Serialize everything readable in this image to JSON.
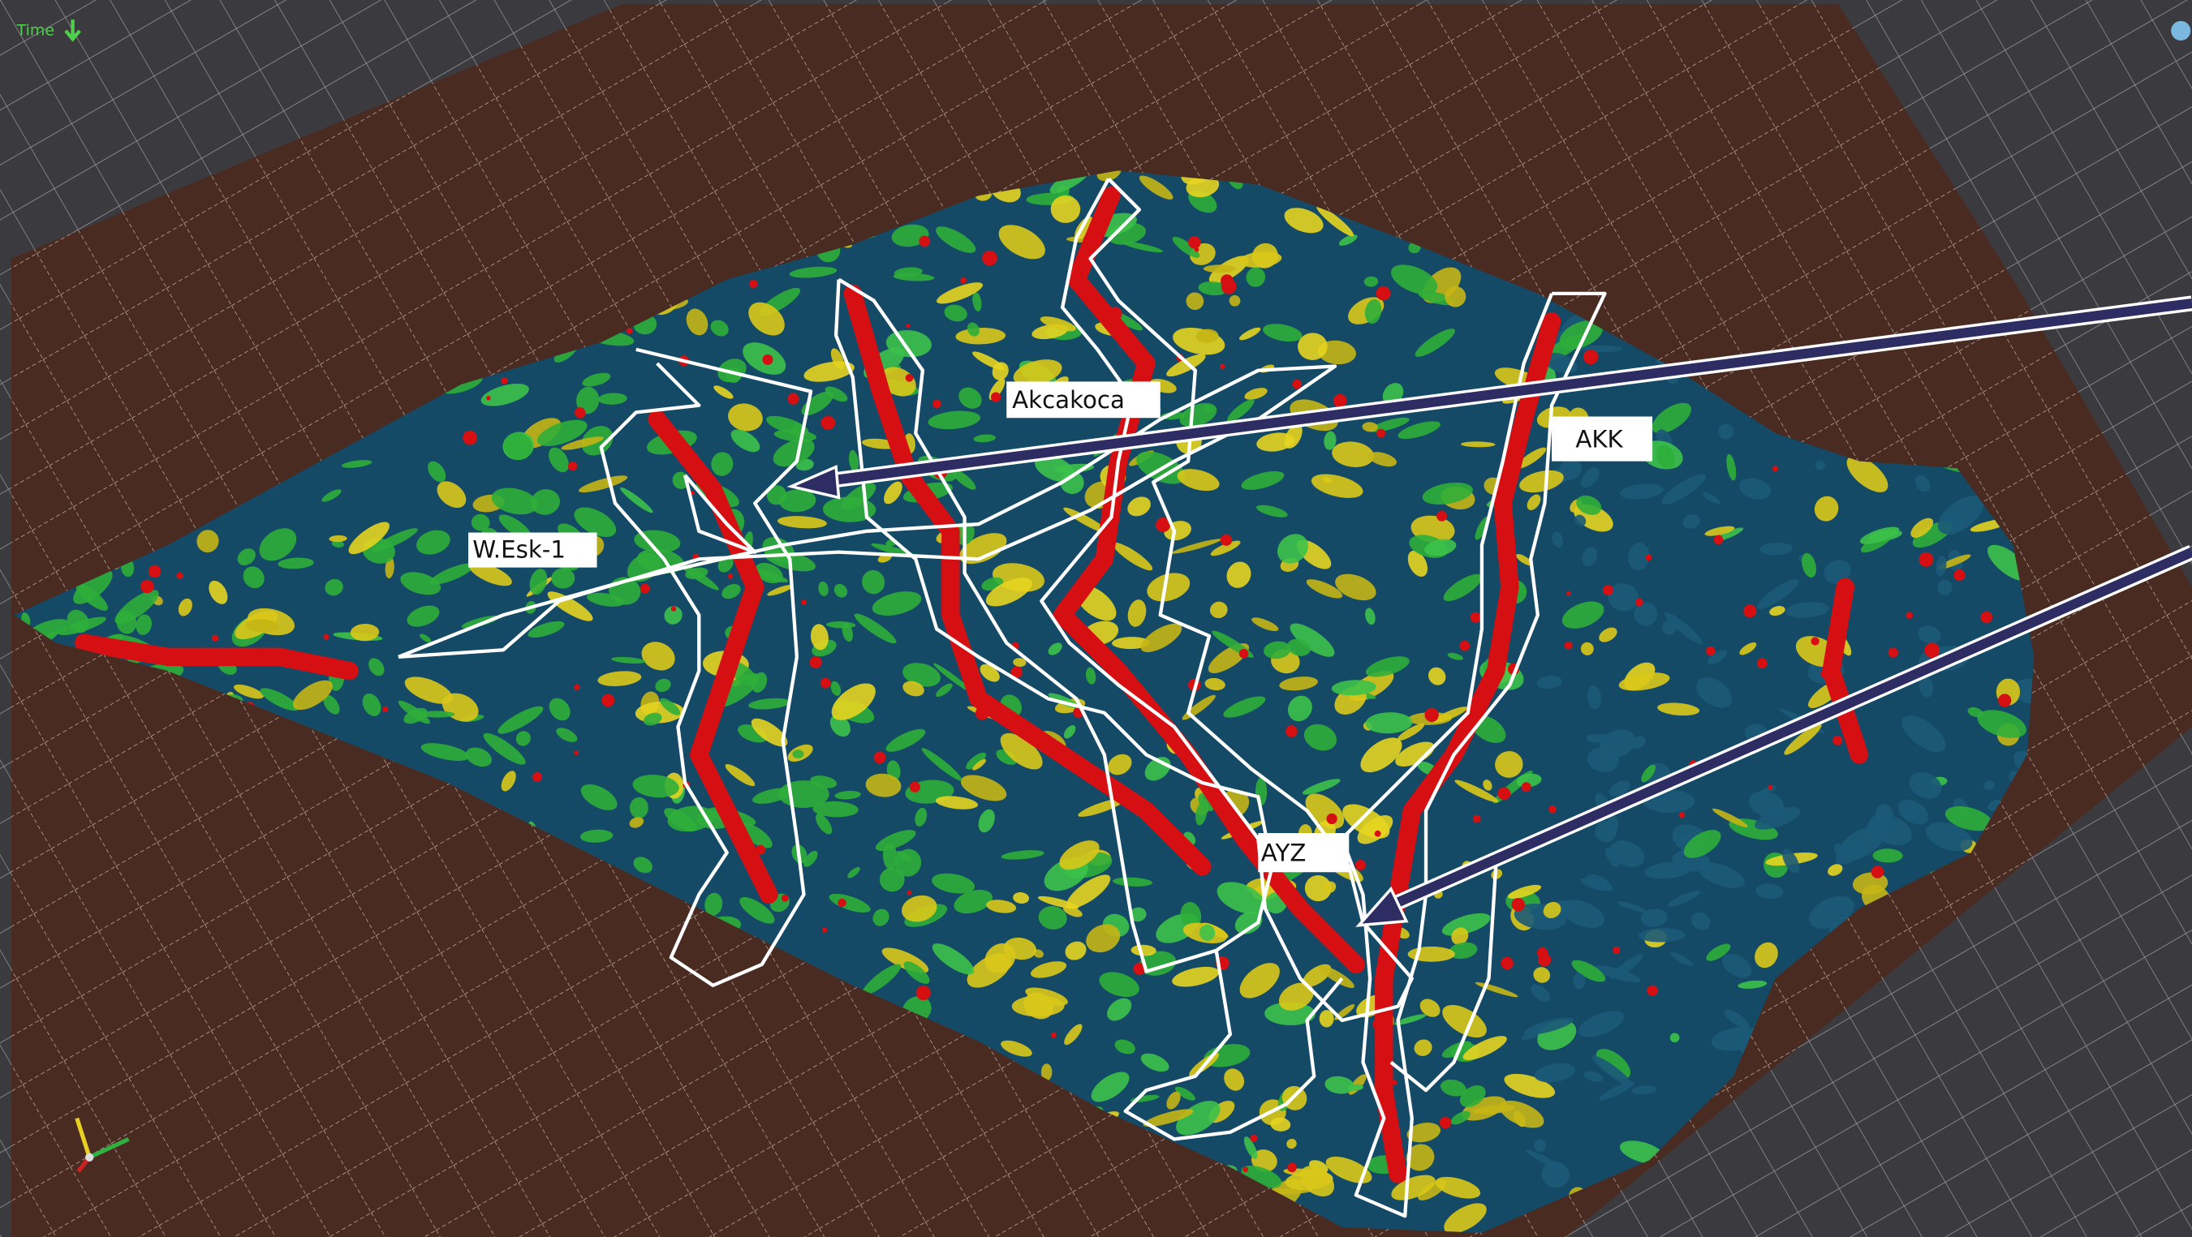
{
  "viewport": {
    "time_label": "Time",
    "labels": [
      "Akcakoca",
      "AKK",
      "W.Esk-1",
      "AYZ"
    ]
  }
}
